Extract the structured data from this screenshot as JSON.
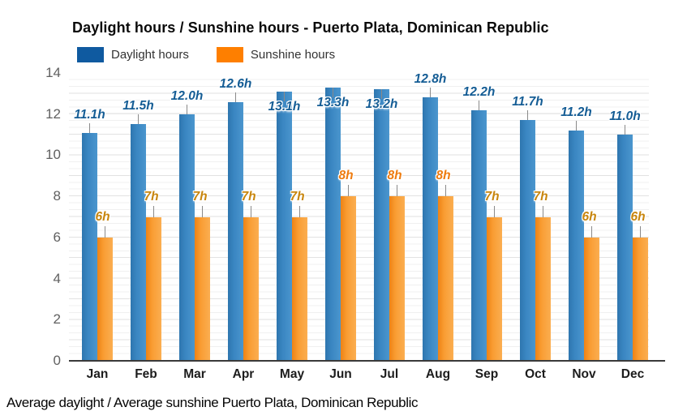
{
  "title": "Daylight hours / Sunshine hours - Puerto Plata, Dominican Republic",
  "legend": {
    "items": [
      {
        "label": "Daylight hours",
        "color": "#0f5aa0"
      },
      {
        "label": "Sunshine hours",
        "color": "#fe7f00"
      }
    ]
  },
  "caption": "Average daylight / Average sunshine Puerto Plata, Dominican Republic",
  "colors": {
    "daylight_bar": "#3a86c2",
    "sunshine_bar": "#f99d33",
    "daylight_label": "#155d95",
    "sunshine_label_dark": "#c8860e",
    "sunshine_label_bright": "#ee7c10",
    "axis_line": "#3a3a3a",
    "ytick_text": "#606060"
  },
  "chart_data": {
    "type": "bar",
    "title": "Daylight hours / Sunshine hours - Puerto Plata, Dominican Republic",
    "categories": [
      "Jan",
      "Feb",
      "Mar",
      "Apr",
      "May",
      "Jun",
      "Jul",
      "Aug",
      "Sep",
      "Oct",
      "Nov",
      "Dec"
    ],
    "series": [
      {
        "name": "Daylight hours",
        "values": [
          11.1,
          11.5,
          12.0,
          12.6,
          13.1,
          13.3,
          13.2,
          12.8,
          12.2,
          11.7,
          11.2,
          11.0
        ],
        "labels": [
          "11.1h",
          "11.5h",
          "12.0h",
          "12.6h",
          "13.1h",
          "13.3h",
          "13.2h",
          "12.8h",
          "12.2h",
          "11.7h",
          "11.2h",
          "11.0h"
        ],
        "label_placement": [
          "above",
          "above",
          "above",
          "above",
          "inside",
          "inside",
          "inside",
          "above",
          "above",
          "above",
          "above",
          "above"
        ],
        "label_color": "#155d95"
      },
      {
        "name": "Sunshine hours",
        "values": [
          6,
          7,
          7,
          7,
          7,
          8,
          8,
          8,
          7,
          7,
          6,
          6
        ],
        "labels": [
          "6h",
          "7h",
          "7h",
          "7h",
          "7h",
          "8h",
          "8h",
          "8h",
          "7h",
          "7h",
          "6h",
          "6h"
        ],
        "label_colors": [
          "#c8860e",
          "#c8860e",
          "#c8860e",
          "#c8860e",
          "#c8860e",
          "#ee7c10",
          "#ee7c10",
          "#ee7c10",
          "#c8860e",
          "#c8860e",
          "#c8860e",
          "#c8860e"
        ]
      }
    ],
    "ylim": [
      0,
      14
    ],
    "yticks": [
      "0",
      "2",
      "4",
      "6",
      "8",
      "10",
      "12",
      "14"
    ],
    "grid": true,
    "legend_position": "top-left",
    "xlabel": "",
    "ylabel": ""
  }
}
